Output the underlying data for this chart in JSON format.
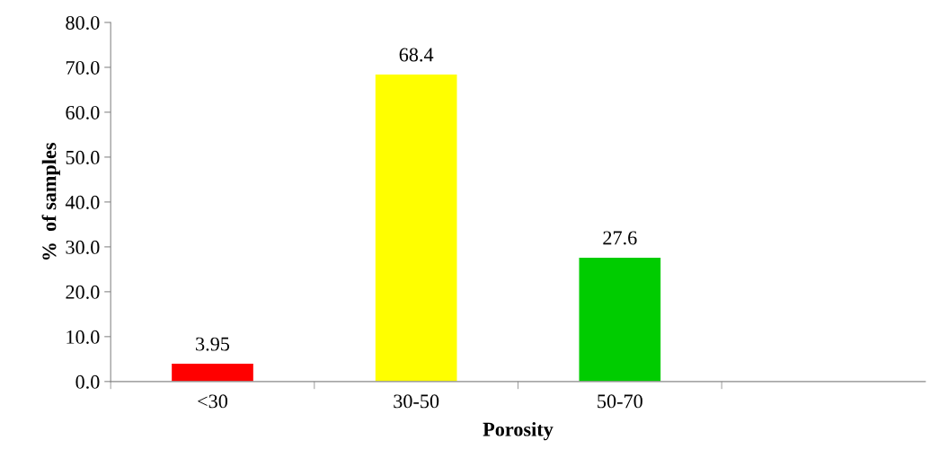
{
  "chart_data": {
    "type": "bar",
    "xlabel": "Porosity",
    "ylabel": "%  of samples",
    "categories": [
      "<30",
      "30-50",
      "50-70",
      null
    ],
    "values": [
      3.95,
      68.4,
      27.6,
      null
    ],
    "colors": [
      "#ff0000",
      "#ffff00",
      "#00cc00",
      "#000000"
    ],
    "ylim": [
      0,
      80
    ],
    "yticks": [
      {
        "value": 0,
        "label": "0.0"
      },
      {
        "value": 10,
        "label": "10.0"
      },
      {
        "value": 20,
        "label": "20.0"
      },
      {
        "value": 30,
        "label": "30.0"
      },
      {
        "value": 40,
        "label": "40.0"
      },
      {
        "value": 50,
        "label": "50.0"
      },
      {
        "value": 60,
        "label": "60.0"
      },
      {
        "value": 70,
        "label": "70.0"
      },
      {
        "value": 80,
        "label": "80.0"
      }
    ],
    "data_labels": true,
    "grid": false,
    "legend": false
  }
}
